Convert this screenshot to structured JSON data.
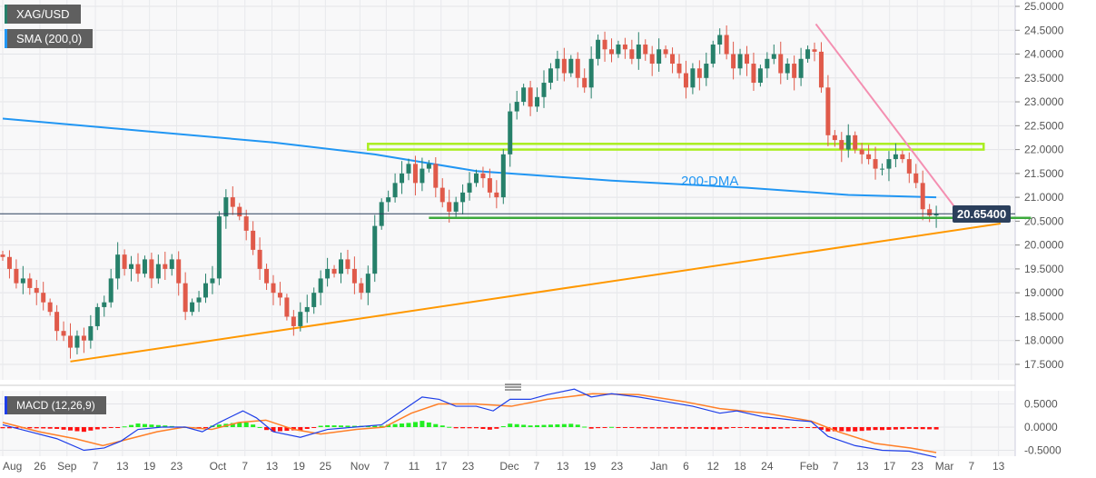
{
  "chart_data": {
    "type": "candlestick",
    "symbol": "XAG/USD",
    "indicator_label": "SMA (200,0)",
    "macd_label": "MACD (12,26,9)",
    "sma_label": "200-DMA",
    "current_price": "20.65400",
    "ylim": [
      17.2,
      25.1
    ],
    "y_ticks": [
      "25.0000",
      "24.5000",
      "24.0000",
      "23.5000",
      "23.0000",
      "22.5000",
      "22.0000",
      "21.5000",
      "21.0000",
      "20.5000",
      "20.0000",
      "19.5000",
      "19.0000",
      "18.5000",
      "18.0000",
      "17.5000"
    ],
    "macd_ticks": [
      "0.5000",
      "0.0000",
      "-0.5000"
    ],
    "x_ticks": [
      {
        "label": "Aug",
        "index": 0
      },
      {
        "label": "26",
        "index": 5.5
      },
      {
        "label": "Sep",
        "index": 9.5
      },
      {
        "label": "7",
        "index": 13.7
      },
      {
        "label": "13",
        "index": 17.7
      },
      {
        "label": "19",
        "index": 21.7
      },
      {
        "label": "23",
        "index": 25.7
      },
      {
        "label": "Oct",
        "index": 31.8
      },
      {
        "label": "7",
        "index": 35.8
      },
      {
        "label": "13",
        "index": 39.8
      },
      {
        "label": "19",
        "index": 43.8
      },
      {
        "label": "25",
        "index": 47.7
      },
      {
        "label": "Nov",
        "index": 52.8
      },
      {
        "label": "7",
        "index": 56.7
      },
      {
        "label": "11",
        "index": 60.8
      },
      {
        "label": "17",
        "index": 64.8
      },
      {
        "label": "23",
        "index": 68.8
      },
      {
        "label": "Dec",
        "index": 74.9
      },
      {
        "label": "7",
        "index": 78.9
      },
      {
        "label": "13",
        "index": 82.8
      },
      {
        "label": "19",
        "index": 86.8
      },
      {
        "label": "23",
        "index": 90.8
      },
      {
        "label": "Jan",
        "index": 97
      },
      {
        "label": "6",
        "index": 101
      },
      {
        "label": "12",
        "index": 105
      },
      {
        "label": "18",
        "index": 109
      },
      {
        "label": "24",
        "index": 113
      },
      {
        "label": "Feb",
        "index": 119.2
      },
      {
        "label": "7",
        "index": 123.1
      },
      {
        "label": "13",
        "index": 127.1
      },
      {
        "label": "17",
        "index": 131.1
      },
      {
        "label": "23",
        "index": 135.2
      },
      {
        "label": "Mar",
        "index": 139.2
      },
      {
        "label": "7",
        "index": 143.2
      },
      {
        "label": "13",
        "index": 147.2
      }
    ],
    "close": [
      19.75,
      19.5,
      19.2,
      19.3,
      19.1,
      19.0,
      18.8,
      18.6,
      18.2,
      18.1,
      17.85,
      18.1,
      18.0,
      18.3,
      18.7,
      18.8,
      19.3,
      19.8,
      19.5,
      19.6,
      19.4,
      19.7,
      19.3,
      19.6,
      19.5,
      19.7,
      19.2,
      18.6,
      18.8,
      18.9,
      19.2,
      19.3,
      20.6,
      21.0,
      20.8,
      20.6,
      20.3,
      19.9,
      19.5,
      19.2,
      19.0,
      18.9,
      18.5,
      18.3,
      18.6,
      18.7,
      19.0,
      19.3,
      19.5,
      19.4,
      19.7,
      19.5,
      19.2,
      19.0,
      19.4,
      20.4,
      20.9,
      21.0,
      21.3,
      21.5,
      21.7,
      21.3,
      21.6,
      21.7,
      21.2,
      20.9,
      20.7,
      20.9,
      21.1,
      21.3,
      21.5,
      21.4,
      21.1,
      21.0,
      21.9,
      22.8,
      23.0,
      23.3,
      22.9,
      23.1,
      23.4,
      23.7,
      23.9,
      23.6,
      23.9,
      23.5,
      23.3,
      23.9,
      24.3,
      24.1,
      24.0,
      24.2,
      24.1,
      23.9,
      24.2,
      24.0,
      23.8,
      24.1,
      24.0,
      23.8,
      23.6,
      23.3,
      23.7,
      23.5,
      23.8,
      24.2,
      24.4,
      24.0,
      23.7,
      24.0,
      23.8,
      23.4,
      23.7,
      23.9,
      24.0,
      23.6,
      23.8,
      23.5,
      23.9,
      24.1,
      24.05,
      23.3,
      22.3,
      22.2,
      22.0,
      22.3,
      22.0,
      21.9,
      21.8,
      21.6,
      21.6,
      21.8,
      21.9,
      21.8,
      21.5,
      21.3,
      20.75,
      20.62,
      20.654
    ],
    "sma200": [
      [
        0,
        22.65
      ],
      [
        20,
        22.4
      ],
      [
        40,
        22.15
      ],
      [
        55,
        21.9
      ],
      [
        70,
        21.55
      ],
      [
        90,
        21.35
      ],
      [
        110,
        21.2
      ],
      [
        125,
        21.05
      ],
      [
        138,
        21.0
      ]
    ],
    "resistance_zone": {
      "from_index": 54,
      "to_index": 145,
      "low": 22.0,
      "high": 22.12
    },
    "support_line": {
      "from_index": 63,
      "to_index": 152,
      "price": 20.57
    },
    "downtrend_line": {
      "from": [
        120.2,
        24.63
      ],
      "to": [
        141.5,
        20.65
      ]
    },
    "uptrend_line": {
      "from": [
        10,
        17.56
      ],
      "to": [
        147.5,
        20.45
      ]
    },
    "macd": [
      [
        0,
        0.05
      ],
      [
        4,
        -0.1
      ],
      [
        8,
        -0.25
      ],
      [
        12,
        -0.5
      ],
      [
        15,
        -0.45
      ],
      [
        17.5,
        -0.3
      ],
      [
        20,
        -0.05
      ],
      [
        23.5,
        0.0
      ],
      [
        27,
        0.0
      ],
      [
        29.5,
        -0.1
      ],
      [
        32,
        0.1
      ],
      [
        35.5,
        0.35
      ],
      [
        37.5,
        0.2
      ],
      [
        40,
        -0.1
      ],
      [
        44,
        -0.22
      ],
      [
        48,
        -0.05
      ],
      [
        52,
        0.0
      ],
      [
        56,
        0.05
      ],
      [
        59,
        0.35
      ],
      [
        62,
        0.65
      ],
      [
        64.5,
        0.6
      ],
      [
        67,
        0.45
      ],
      [
        70,
        0.45
      ],
      [
        72.5,
        0.35
      ],
      [
        75,
        0.6
      ],
      [
        78,
        0.6
      ],
      [
        80.5,
        0.7
      ],
      [
        84.5,
        0.82
      ],
      [
        87,
        0.65
      ],
      [
        90,
        0.72
      ],
      [
        94,
        0.65
      ],
      [
        98,
        0.55
      ],
      [
        102,
        0.45
      ],
      [
        106,
        0.3
      ],
      [
        108.5,
        0.35
      ],
      [
        112.5,
        0.22
      ],
      [
        117,
        0.15
      ],
      [
        119.5,
        0.12
      ],
      [
        122,
        -0.2
      ],
      [
        126,
        -0.4
      ],
      [
        130,
        -0.5
      ],
      [
        134,
        -0.52
      ],
      [
        138,
        -0.65
      ]
    ],
    "signal": [
      [
        0,
        0.1
      ],
      [
        5.4,
        -0.1
      ],
      [
        10.7,
        -0.25
      ],
      [
        14.8,
        -0.4
      ],
      [
        18.8,
        -0.25
      ],
      [
        22.8,
        -0.1
      ],
      [
        26.8,
        0.0
      ],
      [
        30.9,
        -0.05
      ],
      [
        34.9,
        0.1
      ],
      [
        38.9,
        0.15
      ],
      [
        43,
        -0.05
      ],
      [
        47,
        -0.15
      ],
      [
        52.3,
        -0.05
      ],
      [
        56.4,
        0.0
      ],
      [
        60.4,
        0.3
      ],
      [
        64.4,
        0.5
      ],
      [
        69.8,
        0.5
      ],
      [
        75.2,
        0.45
      ],
      [
        80.5,
        0.6
      ],
      [
        87.2,
        0.72
      ],
      [
        94,
        0.7
      ],
      [
        100.7,
        0.55
      ],
      [
        106,
        0.4
      ],
      [
        112.8,
        0.3
      ],
      [
        119.5,
        0.13
      ],
      [
        123.5,
        -0.1
      ],
      [
        128.9,
        -0.35
      ],
      [
        134.2,
        -0.45
      ],
      [
        138,
        -0.55
      ]
    ],
    "macd_ylim": [
      -0.7,
      1.05
    ],
    "colors": {
      "bull": "#26806a",
      "bear": "#e05a4a",
      "sma": "#2196f3",
      "resistance": "#aaee22",
      "support": "#3caa3c",
      "downtrend": "#f48fb1",
      "uptrend": "#ff9800",
      "price_line": "#2b3f5c",
      "macd": "#1e3ee8",
      "signal": "#ff7f27",
      "hist_pos": "#22ee22",
      "hist_neg": "#ff1111"
    }
  }
}
